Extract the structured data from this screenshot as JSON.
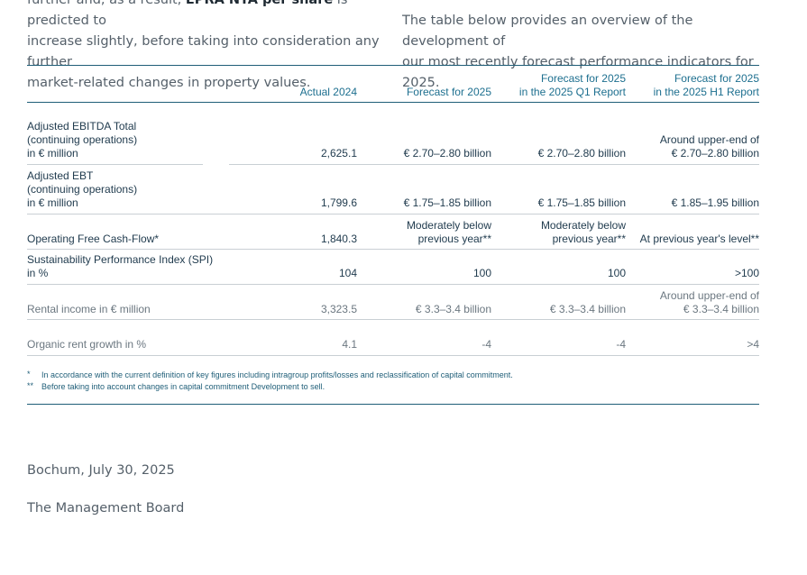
{
  "intro": {
    "left_lines": [
      {
        "pre": "further and, as a result, ",
        "bold": "EPRA NTA per share",
        "post": " is predicted to"
      },
      {
        "pre": "increase slightly, before taking into consideration any further",
        "bold": "",
        "post": ""
      },
      {
        "pre": "market-related changes in property values.",
        "bold": "",
        "post": ""
      }
    ],
    "right_lines": [
      "The table below provides an overview of the development of",
      "our most recently forecast performance indicators for 2025."
    ]
  },
  "table": {
    "headers": [
      [
        "Actual 2024"
      ],
      [
        "Forecast for 2025"
      ],
      [
        "Forecast for 2025",
        "in the 2025 Q1 Report"
      ],
      [
        "Forecast for 2025",
        "in the 2025 H1 Report"
      ]
    ],
    "rows": [
      {
        "label": [
          "Adjusted EBITDA Total",
          "(continuing operations)",
          "in € million"
        ],
        "values": [
          [
            "2,625.1"
          ],
          [
            "€ 2.70–2.80 billion"
          ],
          [
            "€ 2.70–2.80 billion"
          ],
          [
            "Around upper-end of",
            "€ 2.70–2.80 billion"
          ]
        ],
        "style": "strong"
      },
      {
        "label": [
          "Adjusted EBT",
          "(continuing operations)",
          "in € million"
        ],
        "values": [
          [
            "1,799.6"
          ],
          [
            "€ 1.75–1.85 billion"
          ],
          [
            "€ 1.75–1.85 billion"
          ],
          [
            "€ 1.85–1.95 billion"
          ]
        ],
        "style": "strong"
      },
      {
        "label": [
          "Operating Free Cash-Flow*"
        ],
        "values": [
          [
            "1,840.3"
          ],
          [
            "Moderately below",
            "previous year**"
          ],
          [
            "Moderately below",
            "previous year**"
          ],
          [
            "At previous year's level**"
          ]
        ],
        "style": "strong"
      },
      {
        "label": [
          "Sustainability Performance Index (SPI)",
          "in %"
        ],
        "values": [
          [
            "104"
          ],
          [
            "100"
          ],
          [
            "100"
          ],
          [
            ">100"
          ]
        ],
        "style": "strong"
      },
      {
        "label": [
          "Rental income in € million"
        ],
        "values": [
          [
            "3,323.5"
          ],
          [
            "€ 3.3–3.4 billion"
          ],
          [
            "€ 3.3–3.4 billion"
          ],
          [
            "Around upper-end of",
            "€ 3.3–3.4 billion"
          ]
        ],
        "style": "light"
      },
      {
        "label": [
          "Organic rent growth in %"
        ],
        "values": [
          [
            "4.1"
          ],
          [
            "-4"
          ],
          [
            "-4"
          ],
          [
            ">4"
          ]
        ],
        "style": "light"
      }
    ]
  },
  "footnotes": [
    {
      "mark": "*",
      "text": "In accordance with the current definition of key figures including intragroup profits/losses and reclassification of capital commitment."
    },
    {
      "mark": "**",
      "text": "Before taking into account changes in capital commitment Development to sell."
    }
  ],
  "closing": {
    "place_date": "Bochum, July 30, 2025",
    "signature": "The Management Board"
  }
}
